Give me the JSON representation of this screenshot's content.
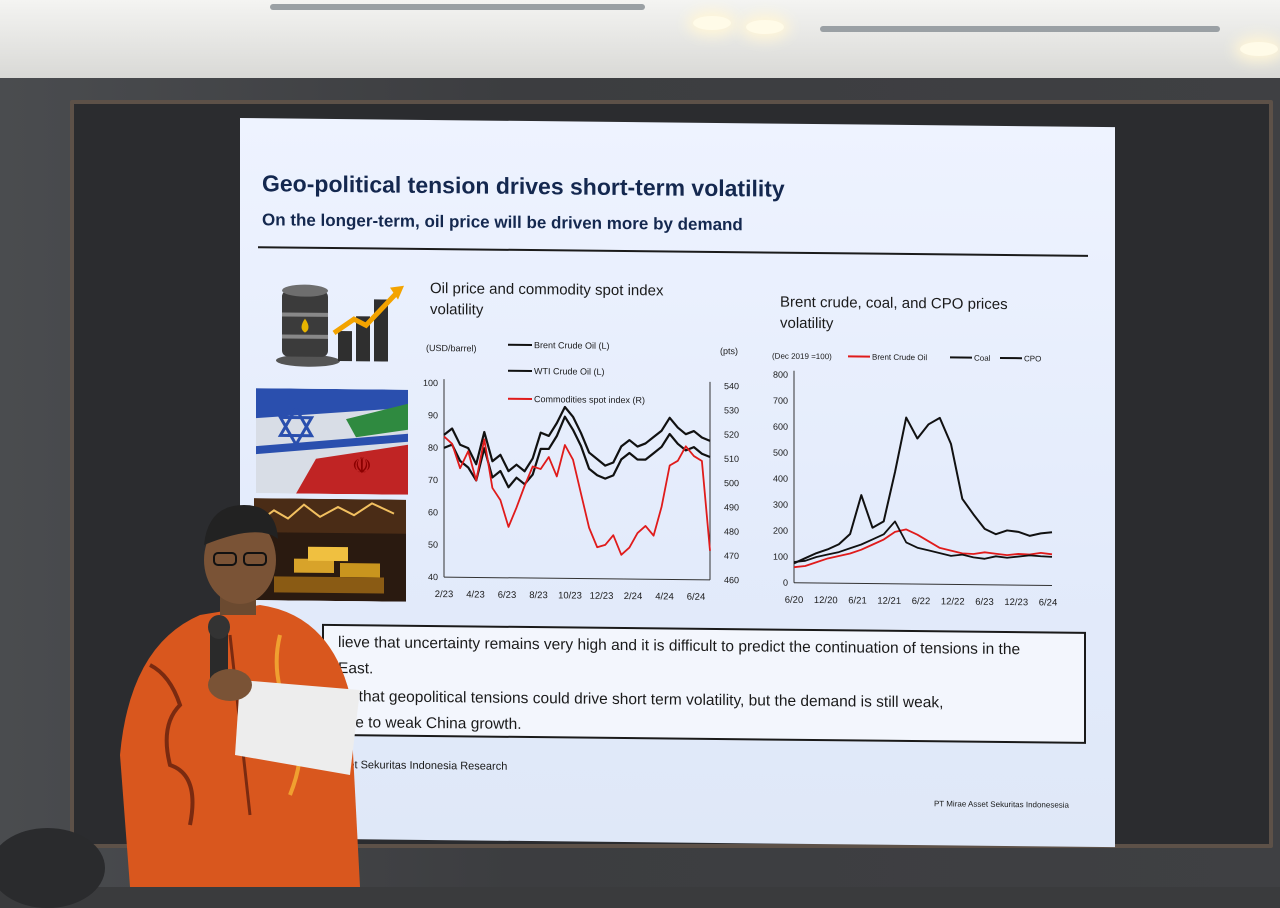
{
  "slide": {
    "title": "Geo-political tension drives short-term volatility",
    "subtitle": "On the longer-term, oil price will be driven more by demand",
    "chart1_title_line1": "Oil price and commodity spot index",
    "chart1_title_line2": "volatility",
    "chart2_title_line1": "Brent crude, coal, and CPO prices",
    "chart2_title_line2": "volatility",
    "bullet1_line1": "lieve that uncertainty remains very high and it is difficult to predict the continuation of tensions in the",
    "bullet1_line2": "East.",
    "bullet2_line1": "ve  that  geopolitical  tensions  could  drive  short  term  volatility,  but  the  demand  is  still  weak,",
    "bullet2_line2": "due to weak China growth.",
    "source": "Asset Sekuritas Indonesia Research",
    "company": "PT Mirae Asset Sekuritas Indonesesia"
  },
  "colors": {
    "navy": "#14284f",
    "brent": "#e01b1b",
    "black": "#111111"
  },
  "chart_data": [
    {
      "type": "line",
      "left_unit": "(USD/barrel)",
      "right_unit": "(pts)",
      "x_ticks": [
        "2/23",
        "4/23",
        "6/23",
        "8/23",
        "10/23",
        "12/23",
        "2/24",
        "4/24",
        "6/24"
      ],
      "ylim_left": [
        40,
        100
      ],
      "yticks_left": [
        "40",
        "50",
        "60",
        "70",
        "80",
        "90",
        "100"
      ],
      "ylim_right": [
        460,
        540
      ],
      "yticks_right": [
        "460",
        "470",
        "480",
        "490",
        "500",
        "510",
        "520",
        "530",
        "540"
      ],
      "series": [
        {
          "name": "Brent Crude Oil (L)",
          "axis": "left",
          "color": "#111111",
          "values": [
            84,
            86,
            81,
            80,
            75,
            85,
            76,
            78,
            73,
            75,
            73,
            77,
            85,
            84,
            88,
            93,
            90,
            85,
            79,
            77,
            75,
            76,
            81,
            83,
            81,
            82,
            84,
            86,
            90,
            87,
            85,
            86,
            84,
            83
          ]
        },
        {
          "name": "WTI Crude Oil (L)",
          "axis": "left",
          "color": "#111111",
          "values": [
            80,
            81,
            76,
            74,
            70,
            80,
            71,
            73,
            68,
            71,
            69,
            72,
            80,
            80,
            84,
            90,
            86,
            81,
            74,
            72,
            71,
            72,
            77,
            79,
            77,
            77,
            79,
            81,
            85,
            82,
            80,
            81,
            79,
            78
          ]
        },
        {
          "name": "Commodities spot index (R)",
          "axis": "right",
          "color": "#e01b1b",
          "values": [
            518,
            515,
            505,
            512,
            500,
            517,
            497,
            492,
            481,
            489,
            498,
            506,
            505,
            510,
            502,
            515,
            509,
            495,
            481,
            473,
            474,
            478,
            470,
            473,
            479,
            482,
            478,
            490,
            507,
            509,
            515,
            511,
            509,
            472
          ]
        }
      ]
    },
    {
      "type": "line",
      "unit_label": "(Dec 2019 =100)",
      "x_ticks": [
        "6/20",
        "12/20",
        "6/21",
        "12/21",
        "6/22",
        "12/22",
        "6/23",
        "12/23",
        "6/24"
      ],
      "ylim": [
        0,
        800
      ],
      "yticks": [
        "0",
        "100",
        "200",
        "300",
        "400",
        "500",
        "600",
        "700",
        "800"
      ],
      "series": [
        {
          "name": "Brent Crude Oil",
          "color": "#e01b1b",
          "values": [
            60,
            65,
            80,
            95,
            105,
            115,
            130,
            150,
            170,
            200,
            210,
            190,
            165,
            140,
            130,
            120,
            118,
            125,
            120,
            115,
            120,
            118,
            125,
            120
          ]
        },
        {
          "name": "Coal",
          "color": "#111111",
          "values": [
            75,
            95,
            115,
            130,
            150,
            190,
            340,
            215,
            240,
            430,
            640,
            560,
            615,
            640,
            540,
            330,
            270,
            215,
            195,
            210,
            205,
            190,
            200,
            205
          ]
        },
        {
          "name": "CPO",
          "color": "#111111",
          "values": [
            80,
            85,
            100,
            110,
            120,
            135,
            150,
            170,
            190,
            240,
            160,
            140,
            130,
            120,
            110,
            115,
            105,
            100,
            110,
            105,
            110,
            115,
            112,
            110
          ]
        }
      ]
    }
  ]
}
